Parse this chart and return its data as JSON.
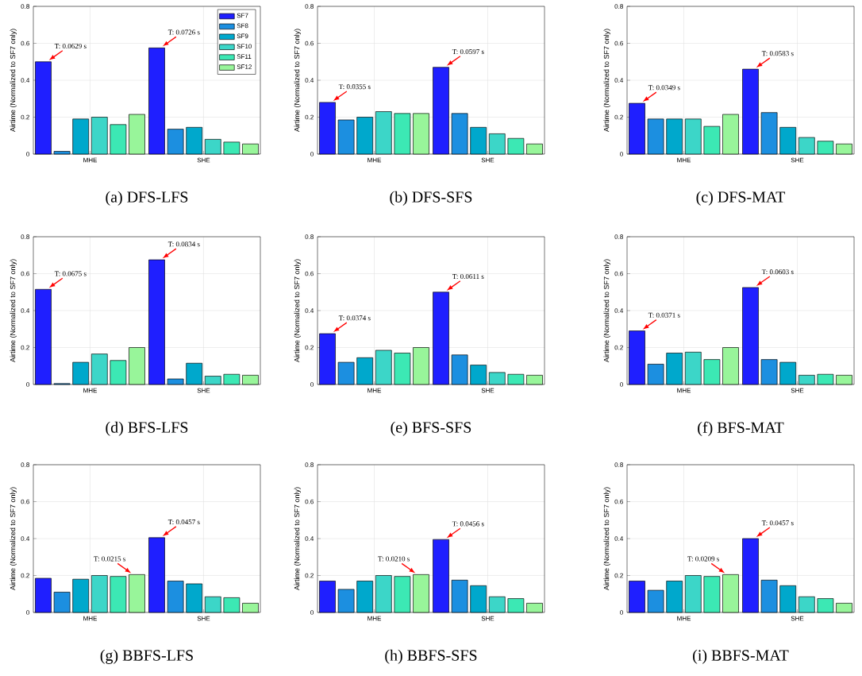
{
  "chart_data": [
    {
      "type": "bar",
      "title": "(a) DFS-LFS",
      "ylabel": "Airtime (Normalized to SF7 only)",
      "categories": [
        "MHE",
        "SHE"
      ],
      "ylim": [
        0,
        0.8
      ],
      "yticks": [
        0,
        0.2,
        0.4,
        0.6,
        0.8
      ],
      "grid": true,
      "legend": "top right",
      "series": [
        {
          "name": "SF7",
          "color": "#1f1fff",
          "values": [
            0.5,
            0.575
          ]
        },
        {
          "name": "SF8",
          "color": "#1c8fe0",
          "values": [
            0.015,
            0.135
          ]
        },
        {
          "name": "SF9",
          "color": "#00a8cc",
          "values": [
            0.19,
            0.145
          ]
        },
        {
          "name": "SF10",
          "color": "#3cd6c8",
          "values": [
            0.2,
            0.08
          ]
        },
        {
          "name": "SF11",
          "color": "#3ce8b4",
          "values": [
            0.16,
            0.065
          ]
        },
        {
          "name": "SF12",
          "color": "#98f59a",
          "values": [
            0.215,
            0.055
          ]
        }
      ],
      "annotations": [
        "T: 0.0629 s",
        "T: 0.0726 s"
      ]
    },
    {
      "type": "bar",
      "title": "(b) DFS-SFS",
      "ylabel": "Airtime (Normalized to SF7 only)",
      "categories": [
        "MHE",
        "SHE"
      ],
      "ylim": [
        0,
        0.8
      ],
      "yticks": [
        0,
        0.2,
        0.4,
        0.6,
        0.8
      ],
      "grid": true,
      "series": [
        {
          "color": "#1f1fff",
          "values": [
            0.28,
            0.47
          ]
        },
        {
          "color": "#1c8fe0",
          "values": [
            0.185,
            0.22
          ]
        },
        {
          "color": "#00a8cc",
          "values": [
            0.2,
            0.145
          ]
        },
        {
          "color": "#3cd6c8",
          "values": [
            0.23,
            0.11
          ]
        },
        {
          "color": "#3ce8b4",
          "values": [
            0.22,
            0.085
          ]
        },
        {
          "color": "#98f59a",
          "values": [
            0.22,
            0.055
          ]
        }
      ],
      "annotations": [
        "T: 0.0355 s",
        "T: 0.0597 s"
      ]
    },
    {
      "type": "bar",
      "title": "(c) DFS-MAT",
      "ylabel": "Airtime (Normalized to SF7 only)",
      "categories": [
        "MHE",
        "SHE"
      ],
      "ylim": [
        0,
        0.8
      ],
      "yticks": [
        0,
        0.2,
        0.4,
        0.6,
        0.8
      ],
      "grid": true,
      "series": [
        {
          "color": "#1f1fff",
          "values": [
            0.275,
            0.46
          ]
        },
        {
          "color": "#1c8fe0",
          "values": [
            0.19,
            0.225
          ]
        },
        {
          "color": "#00a8cc",
          "values": [
            0.19,
            0.145
          ]
        },
        {
          "color": "#3cd6c8",
          "values": [
            0.19,
            0.09
          ]
        },
        {
          "color": "#3ce8b4",
          "values": [
            0.15,
            0.07
          ]
        },
        {
          "color": "#98f59a",
          "values": [
            0.215,
            0.055
          ]
        }
      ],
      "annotations": [
        "T: 0.0349 s",
        "T: 0.0583 s"
      ]
    },
    {
      "type": "bar",
      "title": "(d) BFS-LFS",
      "ylabel": "Airtime (Normalized to SF7 only)",
      "categories": [
        "MHE",
        "SHE"
      ],
      "ylim": [
        0,
        0.8
      ],
      "yticks": [
        0,
        0.2,
        0.4,
        0.6,
        0.8
      ],
      "grid": true,
      "series": [
        {
          "color": "#1f1fff",
          "values": [
            0.515,
            0.675
          ]
        },
        {
          "color": "#1c8fe0",
          "values": [
            0.005,
            0.03
          ]
        },
        {
          "color": "#00a8cc",
          "values": [
            0.12,
            0.115
          ]
        },
        {
          "color": "#3cd6c8",
          "values": [
            0.165,
            0.045
          ]
        },
        {
          "color": "#3ce8b4",
          "values": [
            0.13,
            0.055
          ]
        },
        {
          "color": "#98f59a",
          "values": [
            0.2,
            0.05
          ]
        }
      ],
      "annotations": [
        "T: 0.0675 s",
        "T: 0.0834 s"
      ]
    },
    {
      "type": "bar",
      "title": "(e) BFS-SFS",
      "ylabel": "Airtime (Normalized to SF7 only)",
      "categories": [
        "MHE",
        "SHE"
      ],
      "ylim": [
        0,
        0.8
      ],
      "yticks": [
        0,
        0.2,
        0.4,
        0.6,
        0.8
      ],
      "grid": true,
      "series": [
        {
          "color": "#1f1fff",
          "values": [
            0.275,
            0.5
          ]
        },
        {
          "color": "#1c8fe0",
          "values": [
            0.12,
            0.16
          ]
        },
        {
          "color": "#00a8cc",
          "values": [
            0.145,
            0.105
          ]
        },
        {
          "color": "#3cd6c8",
          "values": [
            0.185,
            0.065
          ]
        },
        {
          "color": "#3ce8b4",
          "values": [
            0.17,
            0.055
          ]
        },
        {
          "color": "#98f59a",
          "values": [
            0.2,
            0.05
          ]
        }
      ],
      "annotations": [
        "T: 0.0374 s",
        "T: 0.0611 s"
      ]
    },
    {
      "type": "bar",
      "title": "(f) BFS-MAT",
      "ylabel": "Airtime (Normalized to SF7 only)",
      "categories": [
        "MHE",
        "SHE"
      ],
      "ylim": [
        0,
        0.8
      ],
      "yticks": [
        0,
        0.2,
        0.4,
        0.6,
        0.8
      ],
      "grid": true,
      "series": [
        {
          "color": "#1f1fff",
          "values": [
            0.29,
            0.525
          ]
        },
        {
          "color": "#1c8fe0",
          "values": [
            0.11,
            0.135
          ]
        },
        {
          "color": "#00a8cc",
          "values": [
            0.17,
            0.12
          ]
        },
        {
          "color": "#3cd6c8",
          "values": [
            0.175,
            0.05
          ]
        },
        {
          "color": "#3ce8b4",
          "values": [
            0.135,
            0.055
          ]
        },
        {
          "color": "#98f59a",
          "values": [
            0.2,
            0.05
          ]
        }
      ],
      "annotations": [
        "T: 0.0371 s",
        "T: 0.0603 s"
      ]
    },
    {
      "type": "bar",
      "title": "(g) BBFS-LFS",
      "ylabel": "Airtime (Normalized to SF7 only)",
      "categories": [
        "MHE",
        "SHE"
      ],
      "ylim": [
        0,
        0.8
      ],
      "yticks": [
        0,
        0.2,
        0.4,
        0.6,
        0.8
      ],
      "grid": true,
      "series": [
        {
          "color": "#1f1fff",
          "values": [
            0.185,
            0.405
          ]
        },
        {
          "color": "#1c8fe0",
          "values": [
            0.11,
            0.17
          ]
        },
        {
          "color": "#00a8cc",
          "values": [
            0.18,
            0.155
          ]
        },
        {
          "color": "#3cd6c8",
          "values": [
            0.2,
            0.085
          ]
        },
        {
          "color": "#3ce8b4",
          "values": [
            0.195,
            0.08
          ]
        },
        {
          "color": "#98f59a",
          "values": [
            0.205,
            0.05
          ]
        }
      ],
      "annotations": [
        "T: 0.0215 s",
        "T: 0.0457 s"
      ]
    },
    {
      "type": "bar",
      "title": "(h) BBFS-SFS",
      "ylabel": "Airtime (Normalized to SF7 only)",
      "categories": [
        "MHE",
        "SHE"
      ],
      "ylim": [
        0,
        0.8
      ],
      "yticks": [
        0,
        0.2,
        0.4,
        0.6,
        0.8
      ],
      "grid": true,
      "series": [
        {
          "color": "#1f1fff",
          "values": [
            0.17,
            0.395
          ]
        },
        {
          "color": "#1c8fe0",
          "values": [
            0.125,
            0.175
          ]
        },
        {
          "color": "#00a8cc",
          "values": [
            0.17,
            0.145
          ]
        },
        {
          "color": "#3cd6c8",
          "values": [
            0.2,
            0.085
          ]
        },
        {
          "color": "#3ce8b4",
          "values": [
            0.195,
            0.075
          ]
        },
        {
          "color": "#98f59a",
          "values": [
            0.205,
            0.05
          ]
        }
      ],
      "annotations": [
        "T: 0.0210 s",
        "T: 0.0456 s"
      ]
    },
    {
      "type": "bar",
      "title": "(i) BBFS-MAT",
      "ylabel": "Airtime (Normalized to SF7 only)",
      "categories": [
        "MHE",
        "SHE"
      ],
      "ylim": [
        0,
        0.8
      ],
      "yticks": [
        0,
        0.2,
        0.4,
        0.6,
        0.8
      ],
      "grid": true,
      "series": [
        {
          "color": "#1f1fff",
          "values": [
            0.17,
            0.4
          ]
        },
        {
          "color": "#1c8fe0",
          "values": [
            0.12,
            0.175
          ]
        },
        {
          "color": "#00a8cc",
          "values": [
            0.17,
            0.145
          ]
        },
        {
          "color": "#3cd6c8",
          "values": [
            0.2,
            0.085
          ]
        },
        {
          "color": "#3ce8b4",
          "values": [
            0.195,
            0.075
          ]
        },
        {
          "color": "#98f59a",
          "values": [
            0.205,
            0.05
          ]
        }
      ],
      "annotations": [
        "T: 0.0209 s",
        "T: 0.0457 s"
      ]
    }
  ]
}
